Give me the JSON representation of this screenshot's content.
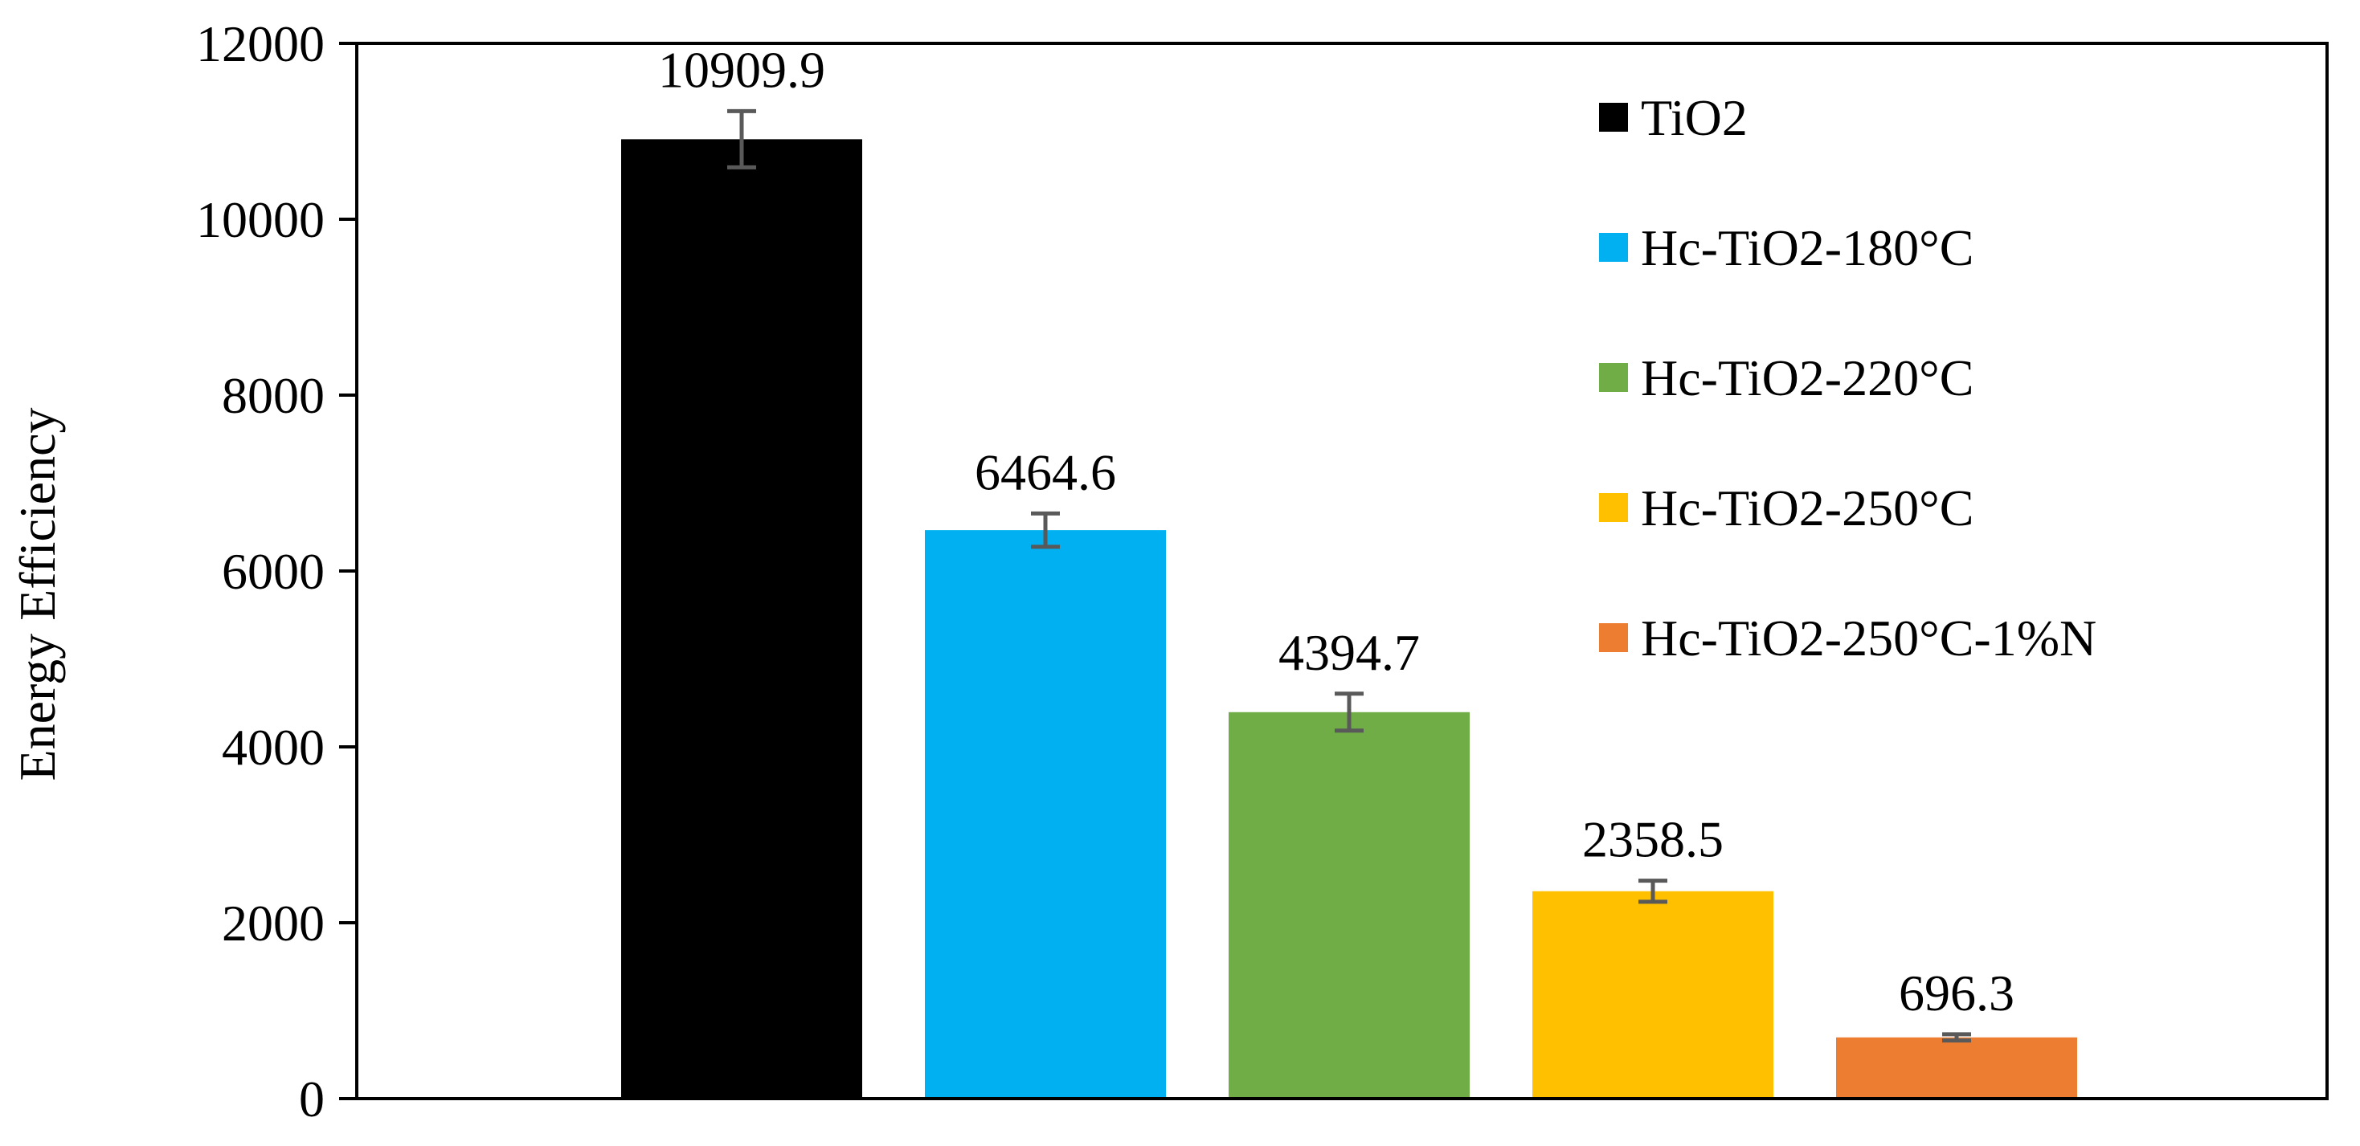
{
  "chart_data": {
    "type": "bar",
    "title": "",
    "xlabel": "",
    "ylabel": "Energy Efficiency",
    "ylim": [
      0,
      12000
    ],
    "yticks": [
      0,
      2000,
      4000,
      6000,
      8000,
      10000,
      12000
    ],
    "ytick_labels": [
      "0",
      "2000",
      "4000",
      "6000",
      "8000",
      "10000",
      "12000"
    ],
    "grid": false,
    "legend_position": "top-right",
    "series": [
      {
        "name": "TiO2",
        "value": 10909.9,
        "label": "10909.9",
        "error": 320,
        "color": "#000000"
      },
      {
        "name": "Hc-TiO2-180°C",
        "value": 6464.6,
        "label": "6464.6",
        "error": 190,
        "color": "#00B0F0"
      },
      {
        "name": "Hc-TiO2-220°C",
        "value": 4394.7,
        "label": "4394.7",
        "error": 210,
        "color": "#70AD47"
      },
      {
        "name": "Hc-TiO2-250°C",
        "value": 2358.5,
        "label": "2358.5",
        "error": 120,
        "color": "#FFC000"
      },
      {
        "name": "Hc-TiO2-250°C-1%N",
        "value": 696.3,
        "label": "696.3",
        "error": 35,
        "color": "#ED7D31"
      }
    ],
    "error_bar_color": "#595959"
  }
}
